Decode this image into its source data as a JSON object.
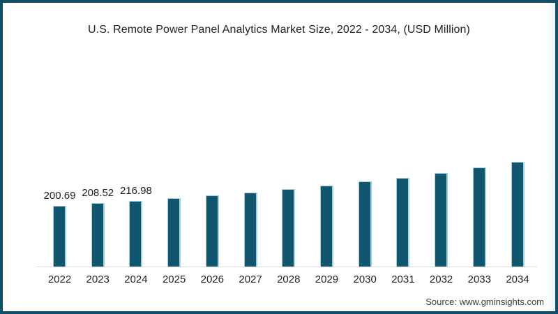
{
  "frame": {
    "border_color": "#114e68",
    "background": "#ffffff"
  },
  "chart_data": {
    "type": "bar",
    "title": "U.S. Remote Power Panel Analytics Market Size, 2022 - 2034, (USD Million)",
    "categories": [
      "2022",
      "2023",
      "2024",
      "2025",
      "2026",
      "2027",
      "2028",
      "2029",
      "2030",
      "2031",
      "2032",
      "2033",
      "2034"
    ],
    "values": [
      200.69,
      208.52,
      216.98,
      226.6,
      235.8,
      244.5,
      254.9,
      266.4,
      280.1,
      293.2,
      308.7,
      327.8,
      345.6
    ],
    "data_labels": [
      "200.69",
      "208.52",
      "216.98",
      "",
      "",
      "",
      "",
      "",
      "",
      "",
      "",
      "",
      ""
    ],
    "xlabel": "",
    "ylabel": "",
    "ylim": [
      0,
      360
    ],
    "grid": false,
    "legend": false,
    "bar_color": "#10566e",
    "bar_edge_color": "#a5cfdc",
    "axis_line_color": "#dcdcdc",
    "label_color": "#222222"
  },
  "footer": {
    "source": "Source: www.gminsights.com"
  }
}
